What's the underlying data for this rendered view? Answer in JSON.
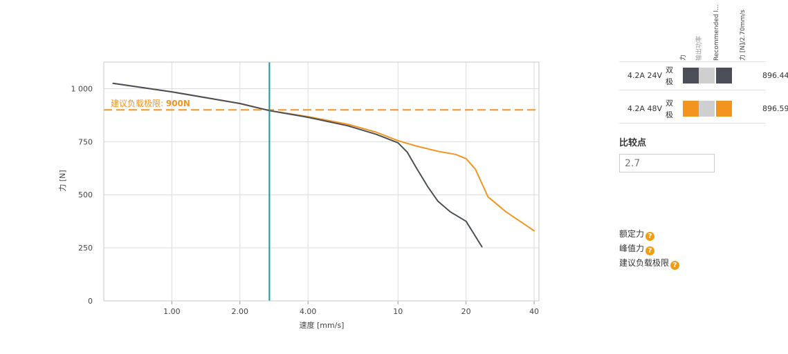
{
  "colors": {
    "series_dark": "#4a4f57",
    "series_orange": "#f39420",
    "threshold": "#f39420",
    "cursor": "#1496a8",
    "grid": "#dcdcdc"
  },
  "chart_data": {
    "type": "line",
    "xscale": "log",
    "xlim": [
      0.5,
      42
    ],
    "ylim": [
      0,
      1125
    ],
    "xlabel": "速度 [mm/s]",
    "ylabel": "力 [N]",
    "xticks": [
      {
        "value": 1,
        "label": "1.00"
      },
      {
        "value": 2,
        "label": "2.00"
      },
      {
        "value": 4,
        "label": "4.00"
      },
      {
        "value": 10,
        "label": "10"
      },
      {
        "value": 20,
        "label": "20"
      },
      {
        "value": 40,
        "label": "40"
      }
    ],
    "yticks": [
      {
        "value": 0,
        "label": "0"
      },
      {
        "value": 250,
        "label": "250"
      },
      {
        "value": 500,
        "label": "500"
      },
      {
        "value": 750,
        "label": "750"
      },
      {
        "value": 1000,
        "label": "1 000"
      }
    ],
    "grid": true,
    "threshold": {
      "value": 900,
      "label": "建议负载极限: 900N"
    },
    "cursor_x": 2.7,
    "series": [
      {
        "name": "4.2A 24V 双极",
        "color": "#4a4f57",
        "x": [
          0.55,
          1,
          2,
          2.7,
          4,
          6,
          8,
          10,
          11,
          12,
          13.5,
          15,
          17,
          20,
          23.5
        ],
        "y": [
          1025,
          985,
          930,
          896.44,
          865,
          825,
          785,
          745,
          700,
          630,
          540,
          470,
          420,
          375,
          255
        ]
      },
      {
        "name": "4.2A 48V 双极",
        "color": "#f39420",
        "x": [
          0.55,
          1,
          2,
          2.7,
          4,
          6,
          8,
          10,
          12,
          15,
          18,
          20,
          22,
          25,
          30,
          40
        ],
        "y": [
          1025,
          985,
          930,
          896.59,
          868,
          832,
          795,
          755,
          730,
          705,
          690,
          670,
          620,
          490,
          420,
          330
        ]
      }
    ]
  },
  "legend": {
    "headers": [
      "力",
      "输出功率",
      "Recommended l...",
      "力 [N]/2.70mm/s"
    ],
    "rows": [
      {
        "motor": "4.2A  24V",
        "polarity": "双极",
        "color": "#4a4f57",
        "value": "896.44"
      },
      {
        "motor": "4.2A  48V",
        "polarity": "双极",
        "color": "#f39420",
        "value": "896.59"
      }
    ]
  },
  "compare": {
    "label": "比较点",
    "value": "2.7"
  },
  "info_links": [
    {
      "label": "额定力"
    },
    {
      "label": "峰值力"
    },
    {
      "label": "建议负载极限"
    }
  ]
}
